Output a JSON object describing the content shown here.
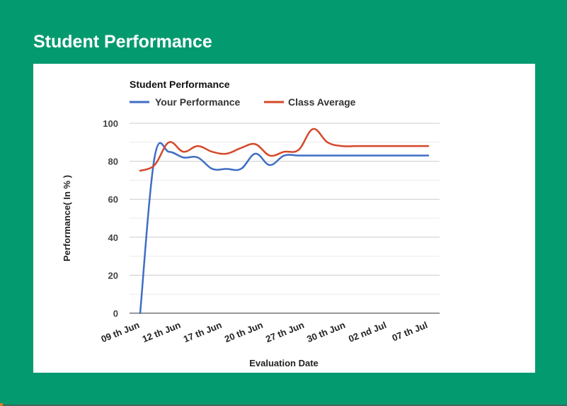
{
  "header": {
    "title": "Student Performance"
  },
  "chart_data": {
    "type": "line",
    "title": "Student Performance",
    "xlabel": "Evaluation Date",
    "ylabel": "Performance( In % )",
    "ylim": [
      0,
      100
    ],
    "yticks": [
      0,
      20,
      40,
      60,
      80,
      100
    ],
    "grid": true,
    "legend": "top-left",
    "categories": [
      "09 th Jun",
      "12 th Jun",
      "17 th Jun",
      "20 th Jun",
      "27 th Jun",
      "30 th Jun",
      "02 nd Jul",
      "07 th Jul"
    ],
    "x": [
      0,
      1,
      2,
      3,
      4,
      5,
      6,
      7,
      8,
      9,
      10,
      11,
      12,
      13,
      14,
      15,
      16,
      17,
      18,
      19,
      20
    ],
    "series": [
      {
        "name": "Your Performance",
        "color": "#3f6ec4",
        "values": [
          0,
          82,
          85,
          82,
          82,
          76,
          76,
          76,
          84,
          78,
          83,
          83,
          83,
          83,
          83,
          83,
          83,
          83,
          83,
          83,
          83
        ]
      },
      {
        "name": "Class Average",
        "color": "#d5482a",
        "values": [
          75,
          78,
          90,
          85,
          88,
          85,
          84,
          87,
          89,
          83,
          85,
          86,
          97,
          90,
          88,
          88,
          88,
          88,
          88,
          88,
          88
        ]
      }
    ]
  }
}
